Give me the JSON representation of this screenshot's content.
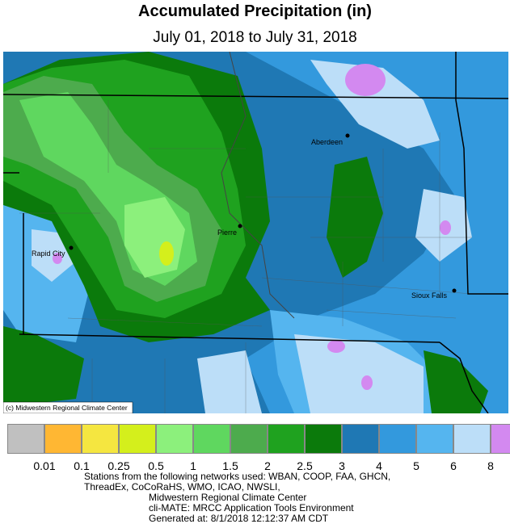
{
  "title": "Accumulated Precipitation (in)",
  "subtitle": "July 01, 2018 to July 31, 2018",
  "credit": "(c) Midwestern Regional Climate Center",
  "cities": [
    {
      "name": "Aberdeen"
    },
    {
      "name": "Pierre"
    },
    {
      "name": "Rapid City"
    },
    {
      "name": "Sioux Falls"
    }
  ],
  "legend": {
    "colors": [
      "#c0c0c0",
      "#ffb733",
      "#f5e640",
      "#d4ef1c",
      "#8cf07c",
      "#5fd75f",
      "#4dab4d",
      "#1fa21f",
      "#0b7a0b",
      "#1f78b4",
      "#3399dd",
      "#55b5ef",
      "#bcdef8",
      "#d389f0"
    ],
    "ticks": [
      "0.01",
      "0.1",
      "0.25",
      "0.5",
      "1",
      "1.5",
      "2",
      "2.5",
      "3",
      "4",
      "5",
      "6",
      "8"
    ]
  },
  "footer": {
    "line1": "Stations from the following networks used: WBAN, COOP, FAA, GHCN,",
    "line2": "ThreadEx, CoCoRaHS, WMO, ICAO, NWSLI,",
    "line3": "Midwestern Regional Climate Center",
    "line4": "cli-MATE: MRCC Application Tools Environment",
    "line5": "Generated at: 8/1/2018 12:12:37 AM CDT"
  }
}
